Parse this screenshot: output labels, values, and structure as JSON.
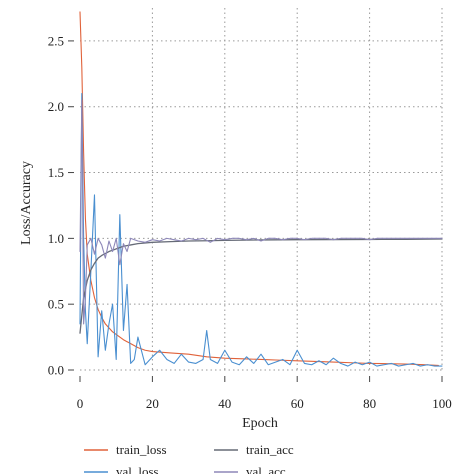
{
  "chart_data": {
    "type": "line",
    "xlabel": "Epoch",
    "ylabel": "Loss/Accuracy",
    "xlim": [
      0,
      100
    ],
    "ylim": [
      0,
      2.75
    ],
    "xticks": [
      "0",
      "20",
      "40",
      "60",
      "80",
      "100"
    ],
    "yticks": [
      "0.0",
      "0.5",
      "1.0",
      "1.5",
      "2.0",
      "2.5"
    ],
    "xtick_values": [
      0,
      20,
      40,
      60,
      80,
      100
    ],
    "ytick_values": [
      0.0,
      0.5,
      1.0,
      1.5,
      2.0,
      2.5
    ],
    "grid": true,
    "grid_style": "dotted",
    "legend_position": "bottom",
    "series": [
      {
        "name": "train_loss",
        "color": "#e0623a",
        "x": [
          0,
          0.5,
          1,
          1.5,
          2,
          3,
          4,
          5,
          6,
          7,
          8,
          9,
          10,
          12,
          14,
          16,
          18,
          20,
          25,
          30,
          35,
          40,
          45,
          50,
          55,
          60,
          65,
          70,
          75,
          80,
          85,
          90,
          95,
          99
        ],
        "y": [
          2.72,
          2.3,
          1.65,
          1.15,
          0.88,
          0.68,
          0.55,
          0.46,
          0.4,
          0.35,
          0.32,
          0.29,
          0.27,
          0.23,
          0.2,
          0.17,
          0.15,
          0.14,
          0.13,
          0.12,
          0.1,
          0.09,
          0.085,
          0.08,
          0.075,
          0.07,
          0.065,
          0.06,
          0.055,
          0.05,
          0.048,
          0.045,
          0.04,
          0.035
        ]
      },
      {
        "name": "val_loss",
        "color": "#4a8fd0",
        "x": [
          0,
          0.5,
          1,
          1.5,
          2,
          3,
          4,
          5,
          6,
          7,
          8,
          9,
          10,
          11,
          12,
          13,
          14,
          15,
          16,
          18,
          20,
          22,
          24,
          26,
          28,
          30,
          32,
          34,
          35,
          36,
          38,
          40,
          42,
          44,
          46,
          48,
          50,
          52,
          54,
          56,
          58,
          60,
          62,
          64,
          66,
          68,
          70,
          72,
          74,
          76,
          78,
          80,
          82,
          84,
          86,
          88,
          90,
          92,
          94,
          96,
          98,
          100
        ],
        "y": [
          0.35,
          2.1,
          1.0,
          0.45,
          0.2,
          0.75,
          1.33,
          0.1,
          0.45,
          0.15,
          0.35,
          0.5,
          0.08,
          1.18,
          0.3,
          0.65,
          0.05,
          0.08,
          0.25,
          0.04,
          0.1,
          0.15,
          0.08,
          0.05,
          0.12,
          0.06,
          0.05,
          0.08,
          0.3,
          0.08,
          0.05,
          0.15,
          0.06,
          0.04,
          0.1,
          0.05,
          0.12,
          0.04,
          0.06,
          0.08,
          0.04,
          0.15,
          0.05,
          0.04,
          0.07,
          0.04,
          0.09,
          0.05,
          0.03,
          0.06,
          0.04,
          0.06,
          0.03,
          0.04,
          0.05,
          0.03,
          0.04,
          0.05,
          0.03,
          0.04,
          0.03,
          0.03
        ]
      },
      {
        "name": "train_acc",
        "color": "#666b77",
        "x": [
          0,
          1,
          2,
          3,
          4,
          5,
          6,
          8,
          10,
          12,
          14,
          16,
          18,
          20,
          25,
          30,
          35,
          40,
          50,
          60,
          70,
          80,
          90,
          100
        ],
        "y": [
          0.28,
          0.55,
          0.68,
          0.76,
          0.81,
          0.85,
          0.87,
          0.9,
          0.92,
          0.94,
          0.95,
          0.96,
          0.965,
          0.97,
          0.975,
          0.98,
          0.982,
          0.985,
          0.988,
          0.99,
          0.991,
          0.992,
          0.993,
          0.995
        ]
      },
      {
        "name": "val_acc",
        "color": "#8d87b8",
        "x": [
          0,
          0.5,
          1,
          1.5,
          2,
          3,
          4,
          5,
          6,
          7,
          8,
          9,
          10,
          11,
          12,
          13,
          14,
          16,
          18,
          20,
          22,
          24,
          26,
          28,
          30,
          32,
          34,
          36,
          38,
          40,
          42,
          44,
          46,
          48,
          50,
          52,
          54,
          56,
          58,
          60,
          62,
          64,
          66,
          68,
          70,
          72,
          74,
          76,
          78,
          80,
          82,
          84,
          86,
          88,
          90,
          92,
          94,
          96,
          98,
          100
        ],
        "y": [
          0.9,
          2.05,
          0.35,
          0.55,
          0.95,
          1.0,
          0.88,
          1.0,
          0.95,
          0.85,
          0.98,
          0.9,
          1.0,
          0.8,
          0.96,
          0.9,
          1.0,
          0.98,
          0.97,
          0.99,
          0.98,
          1.0,
          0.99,
          0.98,
          1.0,
          0.99,
          1.0,
          0.97,
          1.0,
          0.99,
          1.0,
          1.0,
          0.99,
          1.0,
          0.98,
          1.0,
          1.0,
          0.99,
          1.0,
          1.0,
          0.99,
          1.0,
          1.0,
          1.0,
          0.99,
          1.0,
          1.0,
          1.0,
          1.0,
          0.99,
          1.0,
          1.0,
          1.0,
          1.0,
          1.0,
          1.0,
          1.0,
          1.0,
          1.0,
          1.0
        ]
      }
    ],
    "legend": [
      {
        "name": "train_loss",
        "color": "#e0623a"
      },
      {
        "name": "train_acc",
        "color": "#666b77"
      },
      {
        "name": "val_loss",
        "color": "#4a8fd0"
      },
      {
        "name": "val_acc",
        "color": "#8d87b8"
      }
    ]
  }
}
